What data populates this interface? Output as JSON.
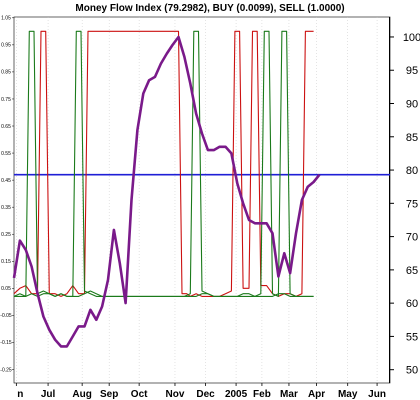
{
  "chart_data": {
    "type": "line",
    "title": "Money Flow Index (79.2982), BUY (0.0099), SELL (1.0000)",
    "x_tick_labels": [
      "n",
      "Jul",
      "Aug",
      "Sep",
      "Oct",
      "Nov",
      "Dec",
      "2005",
      "Feb",
      "Mar",
      "Apr",
      "May",
      "Jun"
    ],
    "x_tick_positions": [
      0.4,
      5.8,
      11.6,
      16.2,
      21.3,
      27.4,
      32.6,
      37.8,
      42.2,
      46.8,
      51.5,
      56.8,
      61.8
    ],
    "x_range": [
      0,
      64
    ],
    "right_axis": {
      "range": [
        48,
        103
      ],
      "ticks": [
        50,
        55,
        60,
        65,
        70,
        75,
        80,
        85,
        90,
        95,
        100
      ]
    },
    "left_axis": {
      "range": [
        -0.3,
        1.053
      ],
      "ticks": [
        "-0.25",
        "-0.15",
        "-0.05",
        "0.05",
        "0.15",
        "0.25",
        "0.35",
        "0.45",
        "0.55",
        "0.65",
        "0.75",
        "0.85",
        "0.95",
        "1.05"
      ],
      "tick_values": [
        -0.25,
        -0.15,
        -0.05,
        0.05,
        0.15,
        0.25,
        0.35,
        0.45,
        0.55,
        0.65,
        0.75,
        0.85,
        0.95,
        1.05
      ]
    },
    "reference_line": {
      "value": 79.3,
      "color": "#1f1fd6"
    },
    "series": [
      {
        "color": "#7a1a8a",
        "axis": "right",
        "x": [
          0,
          1,
          2,
          3,
          4,
          5,
          6,
          7,
          8,
          9,
          10,
          11,
          12,
          13,
          14,
          15,
          16,
          17,
          18,
          19,
          20,
          21,
          22,
          23,
          24,
          25,
          26,
          27,
          28,
          29,
          30,
          31,
          32,
          33,
          34,
          35,
          36,
          37,
          38,
          39,
          40,
          41,
          42,
          43,
          44,
          45,
          46,
          47,
          48,
          49,
          50,
          51,
          52
        ],
        "y": [
          63.8,
          69.4,
          68,
          65.5,
          61.5,
          58,
          56,
          54.5,
          53.5,
          53.5,
          55,
          56.5,
          56.5,
          59,
          57.5,
          59.5,
          63.5,
          71,
          66,
          60,
          75.5,
          86,
          91.5,
          93.5,
          94,
          96,
          97.5,
          98.8,
          100,
          97,
          93,
          88.5,
          85.5,
          83,
          83,
          83.5,
          83.5,
          82.5,
          78,
          75,
          72.5,
          72,
          72,
          72,
          70.5,
          64,
          67.5,
          64.5,
          70.5,
          75.5,
          77.5,
          78.2,
          79.3
        ]
      },
      {
        "color": "#cc1111",
        "axis": "left",
        "x": [
          0,
          1,
          2,
          3,
          4,
          4.6,
          5.4,
          6,
          7,
          8,
          9,
          10,
          11,
          12,
          12.6,
          13.4,
          14,
          15,
          16,
          17,
          18,
          19,
          20,
          21,
          22,
          23,
          24,
          25,
          26,
          27,
          28,
          28.6,
          29.4,
          30,
          31,
          32,
          33,
          34,
          35,
          36,
          37,
          37.6,
          38.4,
          39,
          40,
          40.6,
          41.4,
          42,
          43,
          44,
          45,
          46,
          47,
          48,
          49,
          49.6,
          50.4,
          51
        ],
        "y": [
          0.03,
          0.05,
          0.06,
          0.03,
          0.03,
          1.0,
          1.0,
          0.03,
          0.03,
          0.02,
          0.03,
          0.06,
          0.03,
          0.03,
          1.0,
          1.0,
          1.0,
          1.0,
          1.0,
          1.0,
          1.0,
          1.0,
          1.0,
          1.0,
          1.0,
          1.0,
          1.0,
          1.0,
          1.0,
          1.0,
          1.0,
          0.03,
          0.03,
          0.02,
          0.03,
          0.02,
          0.02,
          0.02,
          0.02,
          0.03,
          0.04,
          1.0,
          1.0,
          0.05,
          0.05,
          1.0,
          1.0,
          0.06,
          0.06,
          0.03,
          0.02,
          0.03,
          0.03,
          0.02,
          0.03,
          1.0,
          1.0,
          1.0
        ]
      },
      {
        "color": "#1b7a1b",
        "axis": "left",
        "x": [
          0,
          1,
          2,
          3,
          4,
          5,
          6,
          7,
          8,
          9,
          10,
          11,
          12,
          13,
          14,
          15,
          16,
          17,
          18,
          19,
          20,
          21,
          22,
          23,
          24,
          25,
          26,
          27,
          28,
          29,
          30,
          31,
          32,
          33,
          34,
          35,
          36,
          37,
          38,
          39,
          40,
          41,
          42,
          43,
          44,
          45,
          46,
          47,
          48,
          49,
          50,
          51
        ],
        "y": [
          0.02,
          0.02,
          0.02,
          0.03,
          0.02,
          0.03,
          0.03,
          0.02,
          0.03,
          0.02,
          0.02,
          0.02,
          0.03,
          0.04,
          0.03,
          0.02,
          0.02,
          0.02,
          0.02,
          0.02,
          0.02,
          0.02,
          0.02,
          0.02,
          0.02,
          0.02,
          0.02,
          0.02,
          0.02,
          0.02,
          0.02,
          0.02,
          0.03,
          0.03,
          0.02,
          0.02,
          0.02,
          0.02,
          0.02,
          0.03,
          0.03,
          0.02,
          0.02,
          0.02,
          0.02,
          0.03,
          0.03,
          0.02,
          0.02,
          0.02,
          0.02,
          0.02
        ]
      },
      {
        "color": "#1b7a1b",
        "axis": "left",
        "x": [
          0,
          1,
          2,
          2.6,
          3.4,
          4,
          5,
          6,
          7,
          8,
          9,
          10,
          10.6,
          11.4,
          12,
          13,
          14,
          15,
          16,
          17,
          18,
          19,
          20,
          21,
          22,
          23,
          24,
          25,
          26,
          27,
          28,
          29,
          30,
          30.6,
          31.4,
          32,
          33,
          34,
          35,
          36,
          37,
          38,
          39,
          40,
          41,
          42,
          42.6,
          43.4,
          44,
          45,
          45.6,
          46.4,
          47,
          48,
          49,
          50,
          51
        ],
        "y": [
          0.02,
          0.03,
          0.02,
          1.0,
          1.0,
          0.03,
          0.04,
          0.03,
          0.02,
          0.03,
          0.02,
          0.02,
          1.0,
          1.0,
          0.04,
          0.03,
          0.02,
          0.02,
          0.02,
          0.02,
          0.02,
          0.02,
          0.02,
          0.02,
          0.02,
          0.02,
          0.02,
          0.02,
          0.02,
          0.02,
          0.02,
          0.02,
          0.03,
          1.0,
          1.0,
          0.04,
          0.03,
          0.02,
          0.02,
          0.02,
          0.02,
          0.02,
          0.02,
          0.02,
          0.02,
          0.03,
          1.0,
          1.0,
          0.03,
          0.02,
          1.0,
          1.0,
          0.03,
          0.02,
          0.02,
          0.02,
          0.02
        ]
      }
    ]
  }
}
